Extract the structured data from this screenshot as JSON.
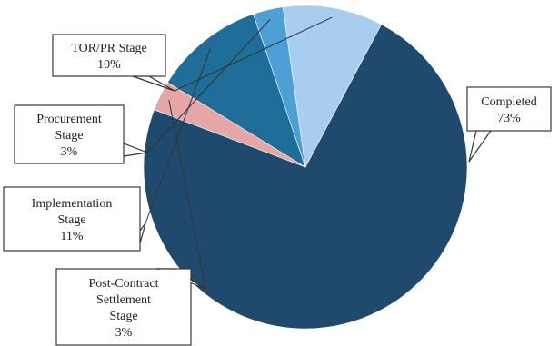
{
  "chart_data": {
    "type": "pie",
    "title": "",
    "slices": [
      {
        "label_lines": [
          "Completed",
          "73%"
        ],
        "value": 73,
        "color": "#1f4a6e"
      },
      {
        "label_lines": [
          "Post-Contract",
          "Settlement",
          "Stage",
          "3%"
        ],
        "value": 3,
        "color": "#e4a6a7"
      },
      {
        "label_lines": [
          "Implementation",
          "Stage",
          "11%"
        ],
        "value": 11,
        "color": "#1f6e9a"
      },
      {
        "label_lines": [
          "Procurement",
          "Stage",
          "3%"
        ],
        "value": 3,
        "color": "#4d9fd6"
      },
      {
        "label_lines": [
          "TOR/PR Stage",
          "10%"
        ],
        "value": 10,
        "color": "#a8cdee"
      }
    ]
  }
}
